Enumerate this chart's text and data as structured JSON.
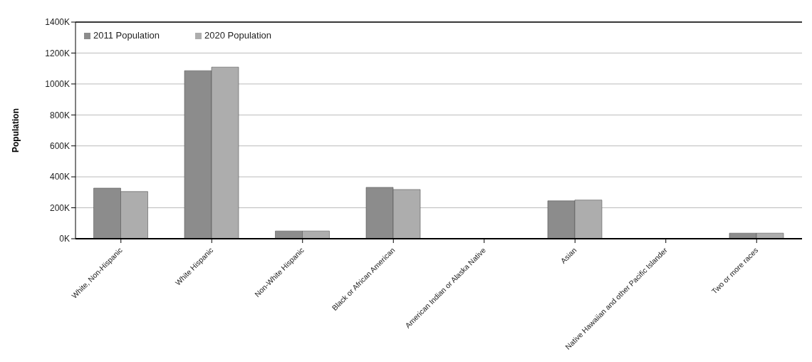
{
  "chart_data": {
    "type": "bar",
    "ylabel": "Population",
    "categories": [
      "White, Non-Hispanic",
      "White Hispanic",
      "Non-White Hispanic",
      "Black or African American",
      "American Indian or Alaska Native",
      "Asian",
      "Native Hawaiian and other Pacific Islander",
      "Two or more races"
    ],
    "series": [
      {
        "name": "2011 Population",
        "color": "#8c8c8c",
        "values": [
          327000,
          1086000,
          50000,
          332000,
          2000,
          245000,
          1000,
          36000
        ]
      },
      {
        "name": "2020 Population",
        "color": "#adadad",
        "values": [
          305000,
          1109000,
          50000,
          318000,
          2000,
          250000,
          1000,
          36000
        ]
      }
    ],
    "ylim": [
      0,
      1400000
    ],
    "yticks": [
      {
        "value": 0,
        "label": "0K"
      },
      {
        "value": 200000,
        "label": "200K"
      },
      {
        "value": 400000,
        "label": "400K"
      },
      {
        "value": 600000,
        "label": "600K"
      },
      {
        "value": 800000,
        "label": "800K"
      },
      {
        "value": 1000000,
        "label": "1000K"
      },
      {
        "value": 1200000,
        "label": "1200K"
      },
      {
        "value": 1400000,
        "label": "1400K"
      }
    ],
    "grid": "y",
    "legend": "top left"
  }
}
